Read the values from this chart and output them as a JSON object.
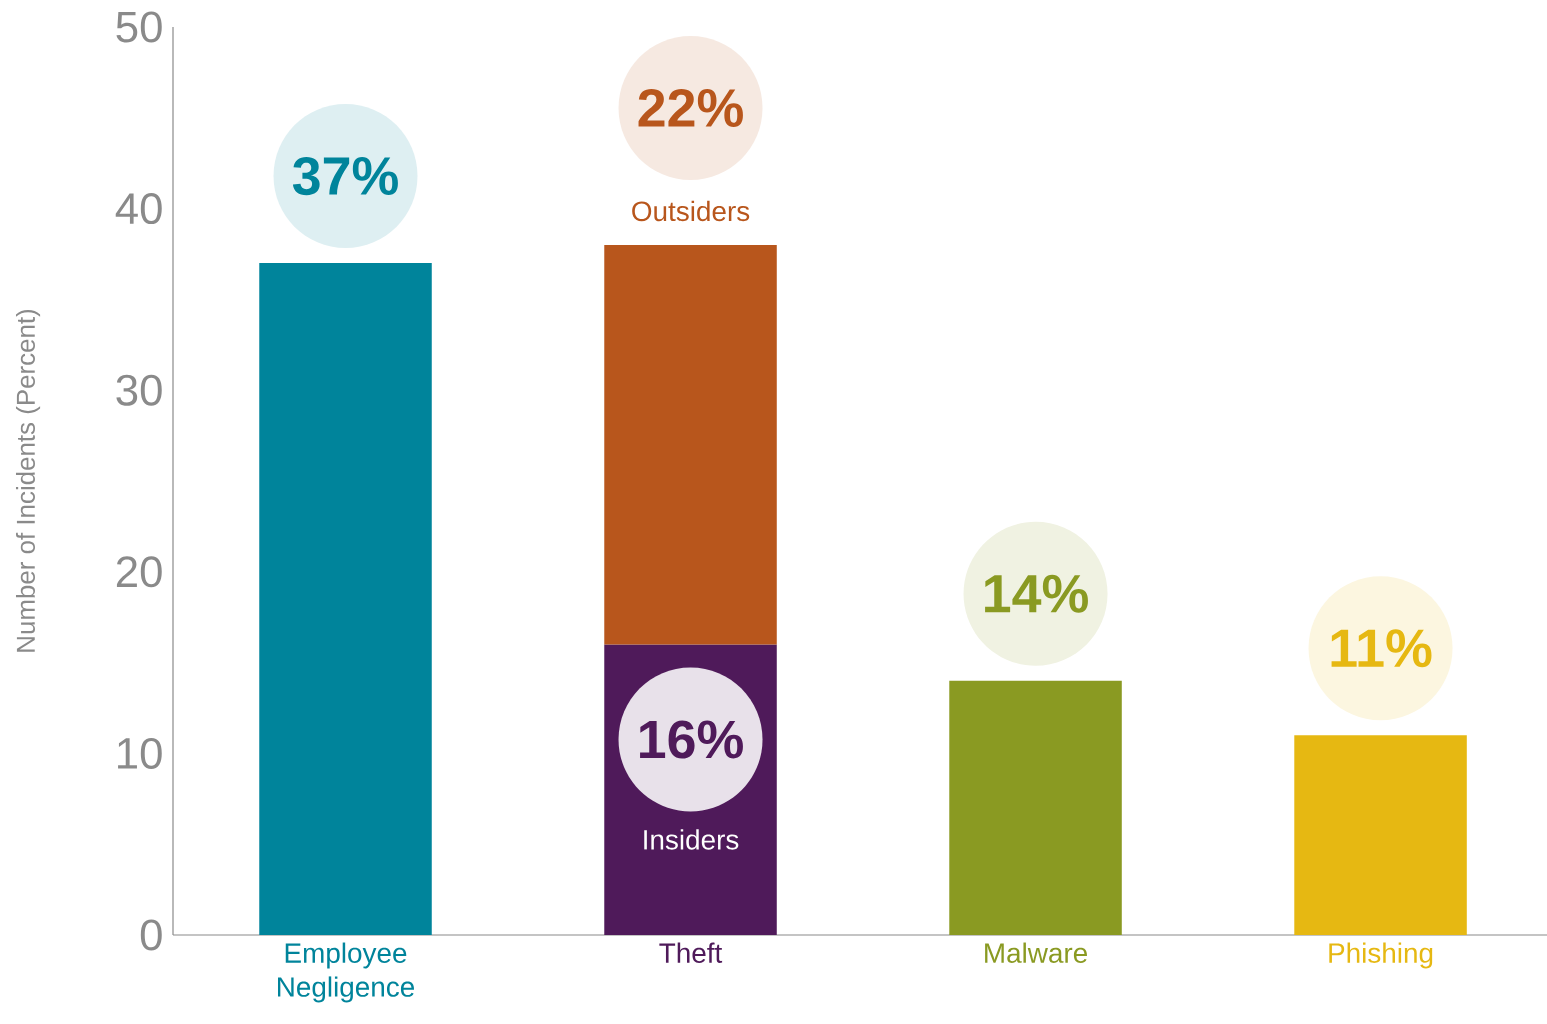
{
  "chart_data": {
    "type": "bar",
    "stacked": true,
    "ylabel": "Number of Incidents (Percent)",
    "categories": [
      "Employee Negligence",
      "Theft",
      "Malware",
      "Phishing"
    ],
    "ylim": [
      0,
      50
    ],
    "yticks": [
      0,
      10,
      20,
      30,
      40,
      50
    ],
    "series": [
      {
        "colors": [
          "#00849b",
          "#4f1a5a",
          "#8a9a22",
          "#e6b812"
        ],
        "values": [
          37,
          null,
          14,
          11
        ],
        "value_labels": [
          "37%",
          null,
          "14%",
          "11%"
        ]
      },
      {
        "name": "Insiders",
        "color": "#4f1a5a",
        "values": [
          null,
          16,
          null,
          null
        ],
        "value_labels": [
          null,
          "16%",
          null,
          null
        ]
      },
      {
        "name": "Outsiders",
        "color": "#b8561c",
        "values": [
          null,
          22,
          null,
          null
        ],
        "value_labels": [
          null,
          "22%",
          null,
          null
        ]
      }
    ]
  }
}
